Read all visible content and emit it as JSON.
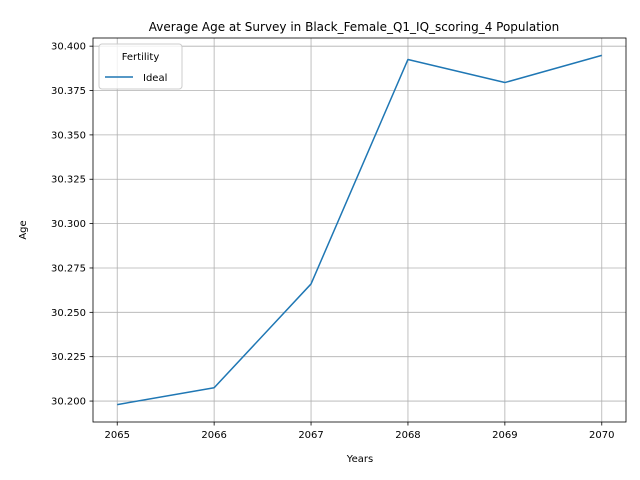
{
  "chart_data": {
    "type": "line",
    "title": "Average Age at Survey in Black_Female_Q1_IQ_scoring_4 Population",
    "xlabel": "Years",
    "ylabel": "Age",
    "x": [
      2065,
      2066,
      2067,
      2068,
      2069,
      2070
    ],
    "series": [
      {
        "name": "Ideal",
        "color": "#1f77b4",
        "values": [
          30.198,
          30.2075,
          30.266,
          30.3925,
          30.3795,
          30.3948
        ]
      }
    ],
    "xlim": [
      2064.75,
      2070.25
    ],
    "ylim": [
      30.1882,
      30.4046
    ],
    "xticks": [
      "2065",
      "2066",
      "2067",
      "2068",
      "2069",
      "2070"
    ],
    "yticks": [
      "30.200",
      "30.225",
      "30.250",
      "30.275",
      "30.300",
      "30.325",
      "30.350",
      "30.375",
      "30.400"
    ],
    "grid": true,
    "legend": {
      "title": "Fertility",
      "position": "upper-left"
    }
  }
}
